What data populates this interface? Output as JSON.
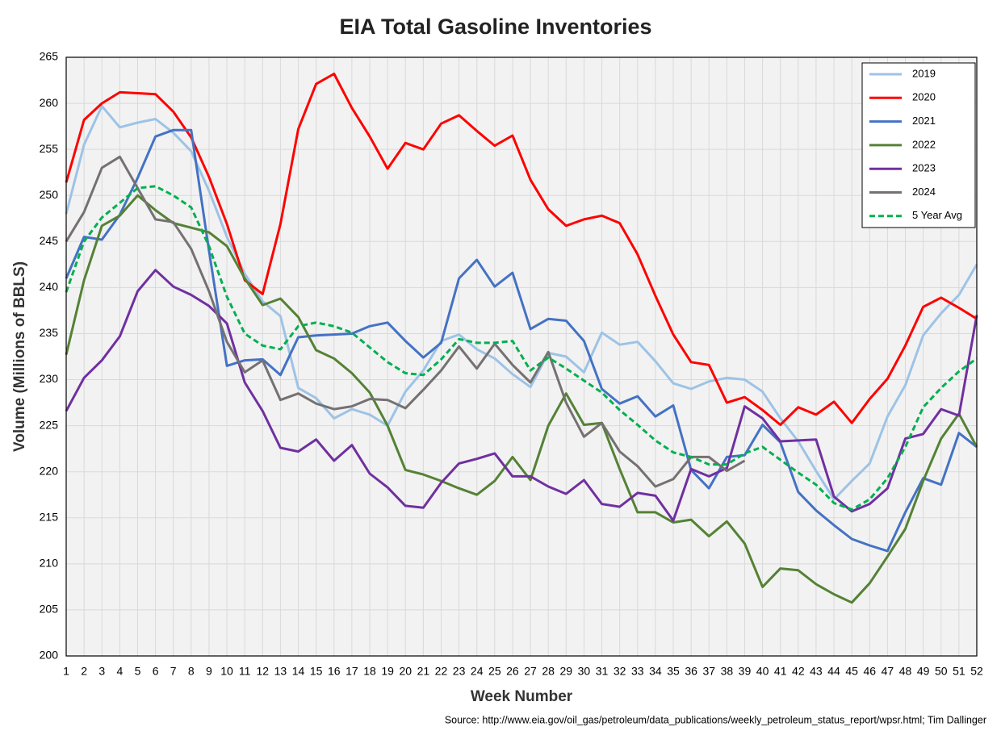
{
  "chart_data": {
    "type": "line",
    "title": "EIA Total Gasoline Inventories",
    "xlabel": "Week Number",
    "ylabel": "Volume (Millions of BBLS)",
    "source": "Source: http://www.eia.gov/oil_gas/petroleum/data_publications/weekly_petroleum_status_report/wpsr.html; Tim Dallinger",
    "categories": [
      1,
      2,
      3,
      4,
      5,
      6,
      7,
      8,
      9,
      10,
      11,
      12,
      13,
      14,
      15,
      16,
      17,
      18,
      19,
      20,
      21,
      22,
      23,
      24,
      25,
      26,
      27,
      28,
      29,
      30,
      31,
      32,
      33,
      34,
      35,
      36,
      37,
      38,
      39,
      40,
      41,
      42,
      43,
      44,
      45,
      46,
      47,
      48,
      49,
      50,
      51,
      52
    ],
    "ylim": [
      200,
      265
    ],
    "yticks": [
      200,
      205,
      210,
      215,
      220,
      225,
      230,
      235,
      240,
      245,
      250,
      255,
      260,
      265
    ],
    "grid": true,
    "legend": "top-right",
    "series": [
      {
        "name": "2019",
        "color": "#9dc3e6",
        "style": "solid",
        "values": [
          248,
          255.5,
          259.7,
          257.4,
          257.9,
          258.3,
          256.8,
          254.8,
          250.5,
          245.5,
          241.5,
          238.5,
          236.9,
          229.1,
          228,
          225.8,
          226.8,
          226.2,
          225,
          228.7,
          231,
          234.2,
          234.9,
          233.3,
          232.3,
          230.6,
          229.2,
          232.9,
          232.5,
          230.8,
          235.1,
          233.8,
          234.1,
          232,
          229.6,
          229,
          229.8,
          230.2,
          230,
          228.7,
          225.8,
          223.3,
          220.1,
          217,
          219,
          220.9,
          226,
          229.4,
          234.8,
          237.2,
          239.2,
          242.5
        ]
      },
      {
        "name": "2020",
        "color": "#ff0000",
        "style": "solid",
        "values": [
          251.4,
          258.2,
          260,
          261.2,
          261.1,
          261,
          259.1,
          256.3,
          252,
          246.9,
          240.8,
          239.3,
          246.9,
          257.2,
          262.1,
          263.2,
          259.5,
          256.4,
          252.9,
          255.7,
          255,
          257.8,
          258.7,
          257,
          255.4,
          256.5,
          251.7,
          248.5,
          246.7,
          247.4,
          247.8,
          247,
          243.6,
          239.1,
          234.9,
          231.9,
          231.6,
          227.5,
          228.1,
          226.7,
          225.1,
          227,
          226.2,
          227.6,
          225.3,
          227.9,
          230.1,
          233.7,
          237.9,
          238.9,
          237.8,
          236.6
        ]
      },
      {
        "name": "2021",
        "color": "#4472c4",
        "style": "solid",
        "values": [
          241,
          245.5,
          245.2,
          247.9,
          251.9,
          256.4,
          257.1,
          257.1,
          244,
          231.5,
          232.1,
          232.2,
          230.5,
          234.6,
          234.8,
          234.9,
          235,
          235.8,
          236.2,
          234.2,
          232.4,
          234,
          241,
          243,
          240.1,
          241.6,
          235.5,
          236.6,
          236.4,
          234.2,
          229,
          227.4,
          228.2,
          226,
          227.2,
          220.2,
          218.2,
          221.6,
          221.8,
          225.1,
          223.2,
          217.8,
          215.8,
          214.2,
          212.7,
          212,
          211.4,
          215.6,
          219.3,
          218.6,
          224.2,
          222.7
        ]
      },
      {
        "name": "2022",
        "color": "#548235",
        "style": "solid",
        "values": [
          232.7,
          240.8,
          246.7,
          247.8,
          250,
          248.4,
          247,
          246.5,
          246,
          244.5,
          241,
          238.1,
          238.8,
          236.8,
          233.2,
          232.3,
          230.7,
          228.6,
          225,
          220.2,
          219.7,
          219,
          218.2,
          217.5,
          219,
          221.6,
          219.1,
          225,
          228.5,
          225.1,
          225.3,
          220.3,
          215.6,
          215.6,
          214.5,
          214.8,
          213,
          214.6,
          212.2,
          207.5,
          209.5,
          209.3,
          207.8,
          206.7,
          205.8,
          207.9,
          210.8,
          213.8,
          219,
          223.6,
          226.3,
          222.7
        ]
      },
      {
        "name": "2023",
        "color": "#7030a0",
        "style": "solid",
        "values": [
          226.6,
          230.2,
          232.1,
          234.7,
          239.6,
          241.9,
          240.1,
          239.2,
          238,
          236.1,
          229.7,
          226.6,
          222.6,
          222.2,
          223.5,
          221.2,
          222.9,
          219.8,
          218.3,
          216.3,
          216.1,
          218.8,
          220.9,
          221.4,
          222,
          219.5,
          219.5,
          218.4,
          217.6,
          219.1,
          216.5,
          216.2,
          217.7,
          217.4,
          214.7,
          220.3,
          219.5,
          220.4,
          227.1,
          225.8,
          223.3,
          223.4,
          223.5,
          217.3,
          215.7,
          216.5,
          218.2,
          223.6,
          224.1,
          226.8,
          226.1,
          237
        ]
      },
      {
        "name": "2024",
        "color": "#767171",
        "style": "solid",
        "values": [
          245,
          248.2,
          253,
          254.2,
          250.8,
          247.4,
          247.1,
          244.2,
          239.6,
          234.1,
          230.8,
          232.1,
          227.8,
          228.5,
          227.4,
          226.8,
          227.1,
          227.9,
          227.8,
          226.9,
          228.9,
          231,
          233.6,
          231.2,
          233.9,
          231.6,
          229.7,
          233,
          227.5,
          223.8,
          225.3,
          222.2,
          220.6,
          218.4,
          219.2,
          221.6,
          221.6,
          220.1,
          221.2,
          null,
          null,
          null,
          null,
          null,
          null,
          null,
          null,
          null,
          null,
          null,
          null,
          null
        ]
      },
      {
        "name": "5 Year Avg",
        "color": "#00b050",
        "style": "dashed",
        "values": [
          239.5,
          245,
          247.6,
          249.2,
          250.8,
          251,
          250,
          248.7,
          244.5,
          239,
          235,
          233.7,
          233.3,
          235.8,
          236.2,
          235.8,
          235.1,
          233.5,
          231.9,
          230.7,
          230.5,
          232.2,
          234.4,
          234,
          234,
          234.2,
          231,
          232.4,
          231.2,
          229.9,
          228.6,
          226.7,
          225.1,
          223.4,
          222.1,
          221.6,
          220.8,
          220.8,
          222,
          222.7,
          221.3,
          219.9,
          218.6,
          216.6,
          215.9,
          217,
          219.3,
          222.7,
          227,
          229.1,
          230.9,
          232.3
        ]
      }
    ]
  }
}
